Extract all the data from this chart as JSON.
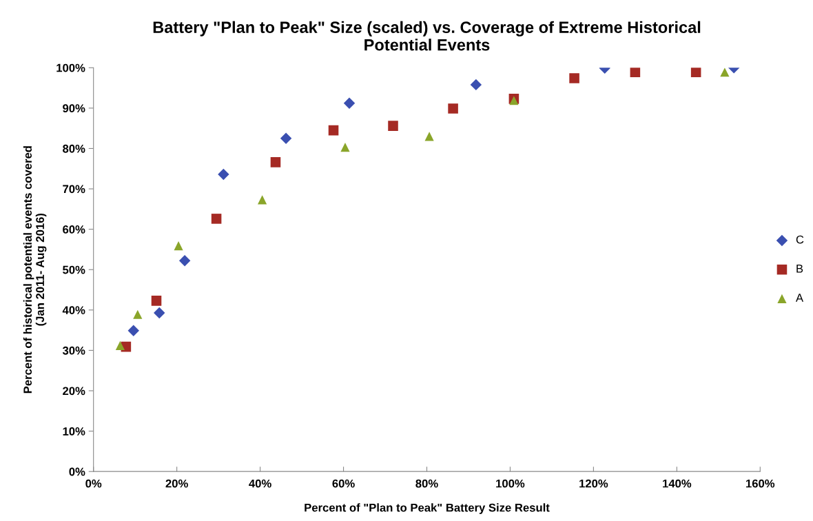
{
  "chart_data": {
    "type": "scatter",
    "title": "Battery \"Plan to Peak\" Size (scaled) vs. Coverage of Extreme Historical\nPotential Events",
    "xlabel": "Percent of \"Plan to Peak\" Battery Size Result",
    "ylabel": "Percent of historical potential events covered\n(Jan 2011- Aug 2016)",
    "series": [
      {
        "name": "C",
        "color": "#3a4fb0",
        "marker": "diamond",
        "x": [
          9.6,
          15.8,
          21.9,
          31.2,
          46.2,
          61.4,
          91.8,
          122.7,
          153.7
        ],
        "values": [
          34.9,
          39.3,
          52.2,
          73.6,
          82.5,
          91.2,
          95.8,
          99.9,
          100.0
        ]
      },
      {
        "name": "B",
        "color": "#a52a24",
        "marker": "square",
        "x": [
          7.8,
          15.1,
          29.5,
          43.7,
          57.6,
          71.9,
          86.3,
          100.9,
          115.4,
          130.0,
          144.6
        ],
        "values": [
          30.9,
          42.3,
          62.6,
          76.6,
          84.5,
          85.6,
          89.9,
          92.3,
          97.4,
          98.9,
          98.9
        ]
      },
      {
        "name": "A",
        "color": "#8aa52a",
        "marker": "triangle",
        "x": [
          6.4,
          10.6,
          20.4,
          40.5,
          60.4,
          80.6,
          100.9,
          151.5
        ],
        "values": [
          31.2,
          38.9,
          55.9,
          67.3,
          80.3,
          83.0,
          91.9,
          98.9
        ]
      }
    ],
    "xlim": [
      0,
      160
    ],
    "xticks": [
      {
        "value": 0,
        "label": "0%"
      },
      {
        "value": 20,
        "label": "20%"
      },
      {
        "value": 40,
        "label": "40%"
      },
      {
        "value": 60,
        "label": "60%"
      },
      {
        "value": 80,
        "label": "80%"
      },
      {
        "value": 100,
        "label": "100%"
      },
      {
        "value": 120,
        "label": "120%"
      },
      {
        "value": 140,
        "label": "140%"
      },
      {
        "value": 160,
        "label": "160%"
      }
    ],
    "ylim": [
      0,
      100
    ],
    "yticks": [
      {
        "value": 0,
        "label": "0%"
      },
      {
        "value": 10,
        "label": "10%"
      },
      {
        "value": 20,
        "label": "20%"
      },
      {
        "value": 30,
        "label": "30%"
      },
      {
        "value": 40,
        "label": "40%"
      },
      {
        "value": 50,
        "label": "50%"
      },
      {
        "value": 60,
        "label": "60%"
      },
      {
        "value": 70,
        "label": "70%"
      },
      {
        "value": 80,
        "label": "80%"
      },
      {
        "value": 90,
        "label": "90%"
      },
      {
        "value": 100,
        "label": "100%"
      }
    ],
    "grid": false,
    "legend": "right"
  }
}
